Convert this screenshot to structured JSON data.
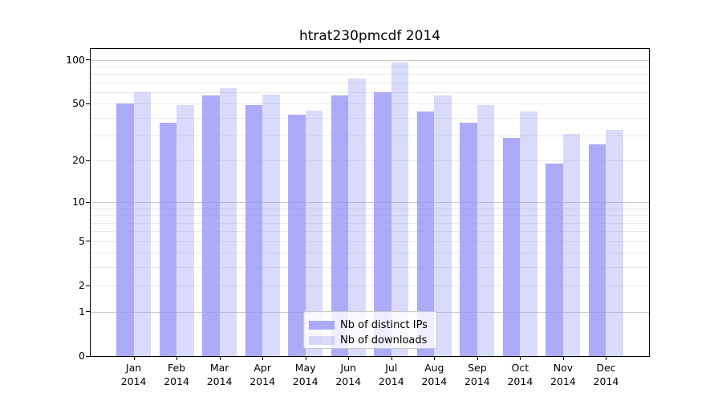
{
  "chart_data": {
    "type": "bar",
    "title": "htrat230pmcdf 2014",
    "categories": [
      "Jan 2014",
      "Feb 2014",
      "Mar 2014",
      "Apr 2014",
      "May 2014",
      "Jun 2014",
      "Jul 2014",
      "Aug 2014",
      "Sep 2014",
      "Oct 2014",
      "Nov 2014",
      "Dec 2014"
    ],
    "series": [
      {
        "name": "Nb of distinct IPs",
        "color": "rgba(152,152,245,0.82)",
        "values": [
          50,
          37,
          57,
          49,
          42,
          57,
          60,
          44,
          37,
          29,
          19,
          26
        ]
      },
      {
        "name": "Nb of downloads",
        "color": "rgba(152,152,245,0.36)",
        "values": [
          60,
          49,
          64,
          58,
          45,
          75,
          96,
          57,
          49,
          44,
          31,
          33
        ]
      }
    ],
    "xlabel": "",
    "ylabel": "",
    "yscale": "log1p",
    "ylim": [
      0,
      119
    ],
    "yticks": [
      100,
      50,
      20,
      10,
      5,
      2,
      1,
      0
    ],
    "grid": {
      "major": [
        1,
        10,
        100
      ],
      "minor": [
        2,
        3,
        4,
        5,
        6,
        7,
        8,
        9,
        20,
        30,
        40,
        50,
        60,
        70,
        80,
        90
      ],
      "major_color": "#c9c9c9",
      "minor_color": "#e9e9e9"
    },
    "legend_position": "lower center",
    "frame_color": "#000000",
    "background_color": "#ffffff"
  }
}
